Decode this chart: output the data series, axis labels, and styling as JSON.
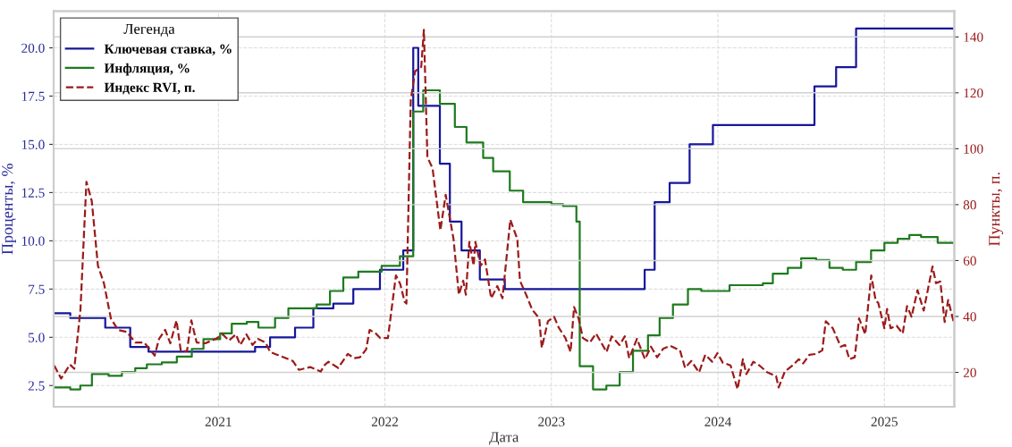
{
  "chart_data": {
    "type": "line",
    "xlabel": "Дата",
    "ylabel": "Проценты, %",
    "y2label": "Пункты, п.",
    "legend_title": "Легенда",
    "legend": "top left",
    "grid": true,
    "xlim": [
      2020.01,
      2025.42
    ],
    "xticks": [
      2021,
      2022,
      2023,
      2024,
      2025
    ],
    "ylim": [
      1.4,
      21.9
    ],
    "yticks": [
      {
        "value": 2.5,
        "label": "2.5"
      },
      {
        "value": 5,
        "label": "5.0"
      },
      {
        "value": 7.5,
        "label": "7.5"
      },
      {
        "value": 10,
        "label": "10.0"
      },
      {
        "value": 12.5,
        "label": "12.5"
      },
      {
        "value": 15,
        "label": "15.0"
      },
      {
        "value": 17.5,
        "label": "17.5"
      },
      {
        "value": 20,
        "label": "20.0"
      }
    ],
    "y2lim": [
      7.7,
      149.2
    ],
    "y2ticks": [
      20,
      40,
      60,
      80,
      100,
      120,
      140
    ],
    "series": [
      {
        "name": "Ключевая ставка, %",
        "type": "step",
        "color": "#16169a",
        "line_style": "solid",
        "x": [
          2020.01,
          2020.11,
          2020.32,
          2020.47,
          2020.58,
          2021.22,
          2021.31,
          2021.46,
          2021.57,
          2021.69,
          2021.81,
          2021.97,
          2022.11,
          2022.17,
          2022.2,
          2022.33,
          2022.39,
          2022.46,
          2022.57,
          2022.72,
          2023.56,
          2023.62,
          2023.71,
          2023.83,
          2023.97,
          2024.58,
          2024.71,
          2024.83,
          2025.41
        ],
        "values": [
          6.25,
          6.0,
          5.5,
          4.5,
          4.25,
          4.5,
          5.0,
          5.5,
          6.5,
          6.75,
          7.5,
          8.5,
          9.5,
          20,
          17,
          14,
          11,
          9.5,
          8,
          7.5,
          8.5,
          12,
          13,
          15,
          16,
          18,
          19,
          21,
          21
        ]
      },
      {
        "name": "Инфляция, %",
        "type": "step",
        "color": "#1e7a1e",
        "line_style": "solid",
        "x": [
          2020.01,
          2020.11,
          2020.17,
          2020.24,
          2020.34,
          2020.42,
          2020.5,
          2020.57,
          2020.66,
          2020.75,
          2020.84,
          2020.91,
          2021.01,
          2021.08,
          2021.17,
          2021.24,
          2021.34,
          2021.42,
          2021.59,
          2021.67,
          2021.75,
          2021.84,
          2021.98,
          2022.09,
          2022.17,
          2022.23,
          2022.33,
          2022.42,
          2022.49,
          2022.59,
          2022.65,
          2022.75,
          2022.83,
          2023.0,
          2023.07,
          2023.15,
          2023.17,
          2023.25,
          2023.33,
          2023.41,
          2023.49,
          2023.58,
          2023.65,
          2023.73,
          2023.82,
          2023.9,
          2024.07,
          2024.27,
          2024.33,
          2024.42,
          2024.5,
          2024.59,
          2024.67,
          2024.75,
          2024.83,
          2024.92,
          2025.0,
          2025.08,
          2025.15,
          2025.22,
          2025.32,
          2025.41
        ],
        "values": [
          2.4,
          2.3,
          2.5,
          3.1,
          3.0,
          3.2,
          3.4,
          3.6,
          3.7,
          4.0,
          4.4,
          4.9,
          5.2,
          5.7,
          5.8,
          5.5,
          6.0,
          6.5,
          6.7,
          7.4,
          8.1,
          8.4,
          8.7,
          9.2,
          16.7,
          17.8,
          17.1,
          15.9,
          15.1,
          14.3,
          13.6,
          12.6,
          12.0,
          11.9,
          11.8,
          11.0,
          3.5,
          2.3,
          2.5,
          3.2,
          4.3,
          5.1,
          6.0,
          6.7,
          7.5,
          7.4,
          7.7,
          7.8,
          8.3,
          8.6,
          9.1,
          9.0,
          8.6,
          8.5,
          8.9,
          9.5,
          9.9,
          10.1,
          10.3,
          10.2,
          9.9,
          9.9
        ]
      },
      {
        "name": "Индекс RVI, п.",
        "axis": "y2",
        "color": "#9b1b1b",
        "line_style": "dashed",
        "x": [
          2020.013,
          2020.055,
          2020.108,
          2020.134,
          2020.171,
          2020.207,
          2020.239,
          2020.276,
          2020.312,
          2020.354,
          2020.396,
          2020.449,
          2020.501,
          2020.554,
          2020.617,
          2020.643,
          2020.68,
          2020.711,
          2020.748,
          2020.774,
          2020.811,
          2020.837,
          2020.869,
          2020.921,
          2020.984,
          2021.026,
          2021.063,
          2021.105,
          2021.131,
          2021.168,
          2021.205,
          2021.236,
          2021.283,
          2021.31,
          2021.378,
          2021.446,
          2021.483,
          2021.551,
          2021.614,
          2021.64,
          2021.661,
          2021.719,
          2021.777,
          2021.814,
          2021.85,
          2021.887,
          2021.908,
          2021.945,
          2021.971,
          2022.018,
          2022.066,
          2022.092,
          2022.118,
          2022.129,
          2022.155,
          2022.181,
          2022.218,
          2022.234,
          2022.255,
          2022.286,
          2022.333,
          2022.365,
          2022.412,
          2022.444,
          2022.47,
          2022.486,
          2022.507,
          2022.533,
          2022.543,
          2022.575,
          2022.601,
          2022.638,
          2022.675,
          2022.706,
          2022.753,
          2022.795,
          2022.811,
          2022.848,
          2022.885,
          2022.927,
          2022.942,
          2022.979,
          2023.016,
          2023.043,
          2023.084,
          2023.115,
          2023.136,
          2023.163,
          2023.189,
          2023.231,
          2023.268,
          2023.331,
          2023.362,
          2023.409,
          2023.441,
          2023.467,
          2023.514,
          2023.562,
          2023.598,
          2023.635,
          2023.672,
          2023.714,
          2023.772,
          2023.803,
          2023.84,
          2023.887,
          2023.924,
          2023.966,
          2023.997,
          2024.029,
          2024.076,
          2024.118,
          2024.15,
          2024.171,
          2024.213,
          2024.249,
          2024.297,
          2024.349,
          2024.365,
          2024.402,
          2024.449,
          2024.486,
          2024.512,
          2024.549,
          2024.591,
          2024.627,
          2024.648,
          2024.69,
          2024.738,
          2024.764,
          2024.79,
          2024.822,
          2024.848,
          2024.885,
          2024.921,
          2024.948,
          2024.963,
          2025.0,
          2025.016,
          2025.037,
          2025.073,
          2025.11,
          2025.136,
          2025.163,
          2025.199,
          2025.236,
          2025.289,
          2025.31,
          2025.336,
          2025.362,
          2025.383,
          2025.415
        ],
        "values": [
          22.5,
          17.8,
          22.8,
          21.3,
          42.4,
          88.2,
          81.3,
          58.2,
          51.9,
          39.3,
          35.2,
          34.5,
          30.7,
          30.7,
          26.0,
          32.0,
          35.2,
          30.4,
          38.6,
          27.6,
          27.6,
          38.6,
          30.7,
          30.4,
          32.0,
          33.6,
          31.4,
          33.6,
          29.8,
          33.6,
          29.8,
          32.0,
          30.7,
          27.3,
          25.7,
          24.1,
          20.9,
          21.9,
          20.3,
          22.8,
          23.8,
          21.6,
          26.6,
          25.1,
          25.4,
          28.2,
          35.2,
          33.9,
          32.3,
          32.3,
          54.7,
          51.6,
          45.3,
          44.6,
          117.3,
          127.7,
          129.3,
          142.5,
          97.0,
          93.0,
          70.8,
          83.5,
          67.7,
          47.8,
          52.8,
          47.8,
          66.7,
          58.2,
          66.7,
          58.2,
          60.4,
          46.5,
          50.9,
          46.5,
          74.6,
          67.7,
          52.8,
          47.8,
          42.4,
          39.3,
          28.8,
          38.3,
          39.9,
          36.1,
          32.3,
          27.3,
          43.4,
          39.3,
          32.3,
          30.7,
          33.9,
          27.3,
          32.9,
          29.8,
          32.9,
          25.1,
          32.0,
          24.7,
          29.2,
          25.4,
          28.5,
          29.5,
          27.9,
          21.6,
          24.1,
          20.0,
          26.3,
          23.8,
          26.9,
          23.5,
          22.5,
          14.0,
          24.7,
          19.4,
          23.8,
          22.5,
          20.0,
          18.7,
          14.6,
          20.3,
          22.5,
          24.7,
          23.2,
          26.3,
          26.6,
          27.9,
          38.3,
          35.8,
          29.2,
          29.8,
          24.7,
          25.4,
          39.3,
          33.6,
          54.7,
          45.6,
          44.9,
          35.8,
          42.7,
          35.8,
          36.7,
          33.9,
          43.7,
          39.9,
          49.4,
          42.1,
          57.9,
          51.9,
          52.5,
          38.0,
          45.9,
          38.3
        ]
      }
    ]
  }
}
